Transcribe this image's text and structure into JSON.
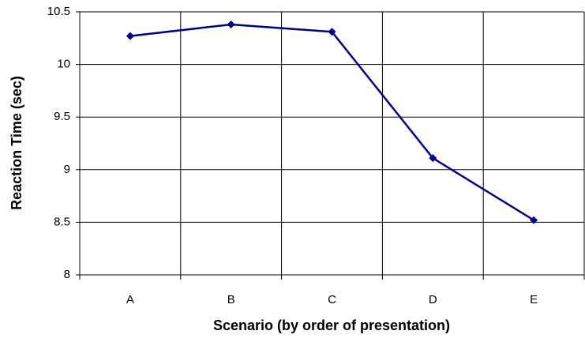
{
  "chart_data": {
    "type": "line",
    "x_label": "Scenario (by order of presentation)",
    "y_label": "Reaction Time (sec)",
    "categories": [
      "A",
      "B",
      "C",
      "D",
      "E"
    ],
    "series": [
      {
        "name": "Reaction Time",
        "color": "#000080",
        "values": [
          10.27,
          10.38,
          10.31,
          9.11,
          8.52
        ]
      }
    ],
    "ylim": [
      8,
      10.5
    ],
    "yticks": [
      8,
      8.5,
      9,
      9.5,
      10,
      10.5
    ],
    "grid": true
  }
}
